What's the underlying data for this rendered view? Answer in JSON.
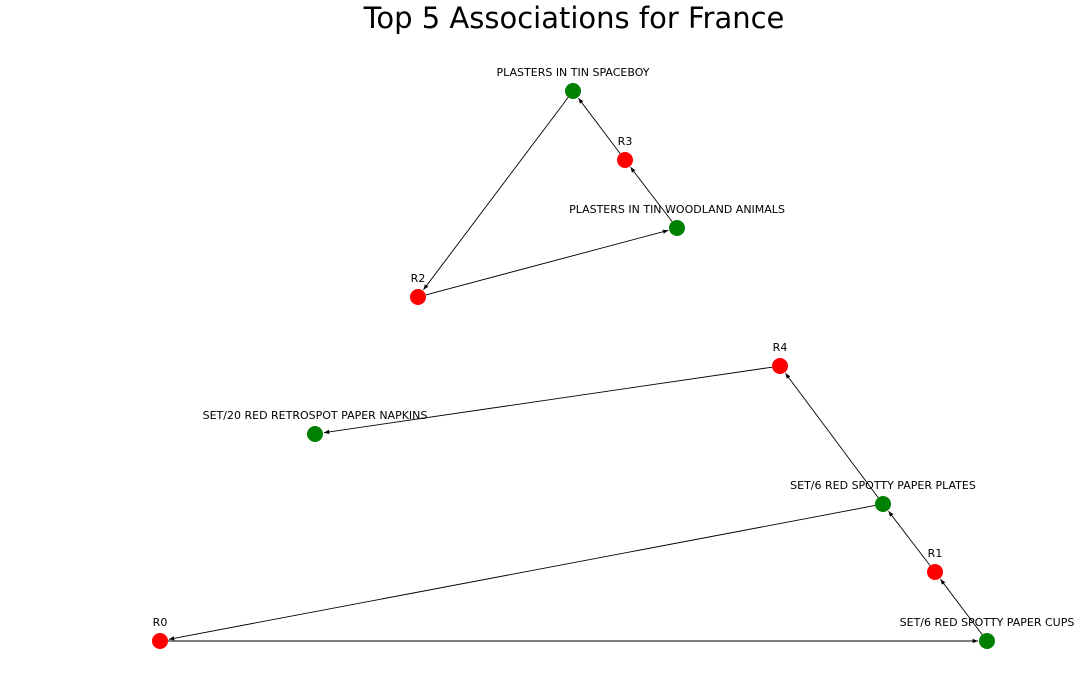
{
  "title": "Top 5 Associations for France",
  "colors": {
    "item_node": "#008000",
    "rule_node": "#ff0000",
    "edge": "#000000",
    "background": "#ffffff"
  },
  "nodes": [
    {
      "id": "PLASTERS IN TIN SPACEBOY",
      "label": "PLASTERS IN TIN SPACEBOY",
      "kind": "item"
    },
    {
      "id": "R3",
      "label": "R3",
      "kind": "rule"
    },
    {
      "id": "PLASTERS IN TIN WOODLAND ANIMALS",
      "label": "PLASTERS IN TIN WOODLAND ANIMALS",
      "kind": "item"
    },
    {
      "id": "R2",
      "label": "R2",
      "kind": "rule"
    },
    {
      "id": "R4",
      "label": "R4",
      "kind": "rule"
    },
    {
      "id": "SET/20 RED RETROSPOT PAPER NAPKINS",
      "label": "SET/20 RED RETROSPOT PAPER NAPKINS",
      "kind": "item"
    },
    {
      "id": "SET/6 RED SPOTTY PAPER PLATES",
      "label": "SET/6 RED SPOTTY PAPER PLATES",
      "kind": "item"
    },
    {
      "id": "R1",
      "label": "R1",
      "kind": "rule"
    },
    {
      "id": "R0",
      "label": "R0",
      "kind": "rule"
    },
    {
      "id": "SET/6 RED SPOTTY PAPER CUPS",
      "label": "SET/6 RED SPOTTY PAPER CUPS",
      "kind": "item"
    }
  ],
  "edges": [
    {
      "from": "PLASTERS IN TIN WOODLAND ANIMALS",
      "to": "R3"
    },
    {
      "from": "R3",
      "to": "PLASTERS IN TIN SPACEBOY"
    },
    {
      "from": "PLASTERS IN TIN SPACEBOY",
      "to": "R2"
    },
    {
      "from": "R2",
      "to": "PLASTERS IN TIN WOODLAND ANIMALS"
    },
    {
      "from": "SET/6 RED SPOTTY PAPER PLATES",
      "to": "R4"
    },
    {
      "from": "R4",
      "to": "SET/20 RED RETROSPOT PAPER NAPKINS"
    },
    {
      "from": "SET/6 RED SPOTTY PAPER CUPS",
      "to": "R1"
    },
    {
      "from": "R1",
      "to": "SET/6 RED SPOTTY PAPER PLATES"
    },
    {
      "from": "SET/6 RED SPOTTY PAPER PLATES",
      "to": "R0"
    },
    {
      "from": "R0",
      "to": "SET/6 RED SPOTTY PAPER CUPS"
    }
  ]
}
